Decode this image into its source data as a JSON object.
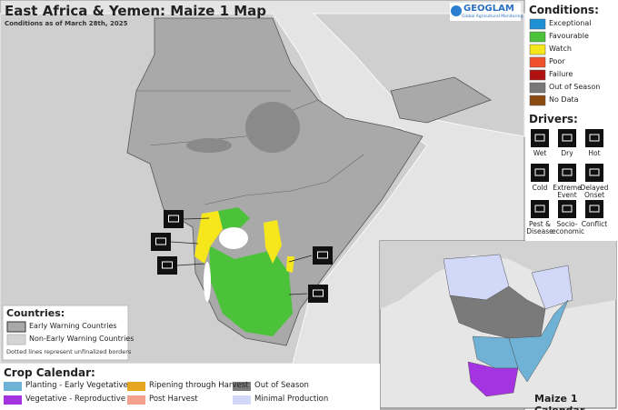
{
  "header": {
    "title": "East Africa & Yemen: Maize 1 Map",
    "subtitle": "Conditions as of March 28th, 2025"
  },
  "logo": {
    "name": "GEOGLAM",
    "tagline": "Global Agricultural Monitoring"
  },
  "conditions": {
    "title": "Conditions:",
    "items": [
      {
        "label": "Exceptional",
        "color": "#1f8fd6"
      },
      {
        "label": "Favourable",
        "color": "#4cc23a"
      },
      {
        "label": "Watch",
        "color": "#f6e61c"
      },
      {
        "label": "Poor",
        "color": "#f0502a"
      },
      {
        "label": "Failure",
        "color": "#b01212"
      },
      {
        "label": "Out of Season",
        "color": "#787878"
      },
      {
        "label": "No Data",
        "color": "#8b4a12"
      }
    ]
  },
  "drivers": {
    "title": "Drivers:",
    "items": [
      "Wet",
      "Dry",
      "Hot",
      "Cold",
      "Extreme Event",
      "Delayed Onset",
      "Pest & Disease",
      "Socio-economic",
      "Conflict"
    ]
  },
  "countries": {
    "title": "Countries:",
    "items": [
      {
        "label": "Early Warning Countries",
        "color": "#a8a8a8"
      },
      {
        "label": "Non-Early Warning Countries",
        "color": "#d4d4d4"
      }
    ],
    "note": "Dotted lines represent unfinalized borders"
  },
  "crop_calendar": {
    "title": "Crop Calendar:",
    "items": [
      {
        "label": "Planting - Early Vegetative",
        "color": "#6fb2d6"
      },
      {
        "label": "Ripening through Harvest",
        "color": "#e6a61e"
      },
      {
        "label": "Out of Season",
        "color": "#7a7a7a"
      },
      {
        "label": "Vegetative - Reproductive",
        "color": "#a434e2"
      },
      {
        "label": "Post Harvest",
        "color": "#f4a08e"
      },
      {
        "label": "Minimal Production",
        "color": "#d2d9f8"
      }
    ]
  },
  "inset": {
    "title": "Maize 1 Calendar"
  }
}
